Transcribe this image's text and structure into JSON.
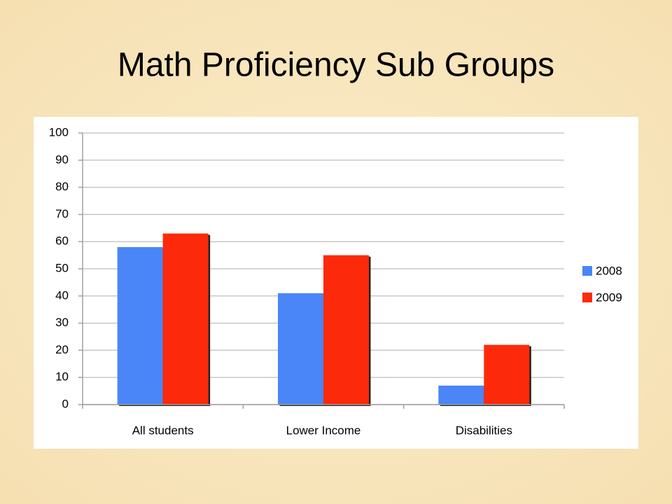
{
  "chart_data": {
    "type": "bar",
    "title": "Math Proficiency Sub Groups",
    "categories": [
      "All students",
      "Lower Income",
      "Disabilities"
    ],
    "series": [
      {
        "name": "2008",
        "color": "#4a86f7",
        "values": [
          58,
          41,
          7
        ]
      },
      {
        "name": "2009",
        "color": "#fc2a0a",
        "values": [
          63,
          55,
          22
        ]
      }
    ],
    "ylim": [
      0,
      100
    ],
    "yticks": [
      0,
      10,
      20,
      30,
      40,
      50,
      60,
      70,
      80,
      90,
      100
    ],
    "grid": true,
    "legend": "right"
  }
}
